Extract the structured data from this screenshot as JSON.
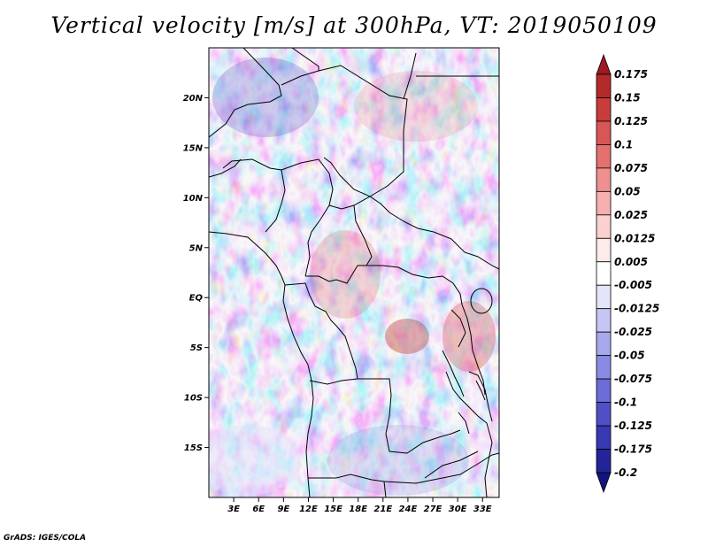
{
  "title": "Vertical velocity [m/s] at 300hPa, VT: 2019050109",
  "credit": "GrADS: IGES/COLA",
  "map": {
    "lon_range": [
      0,
      35
    ],
    "lat_range": [
      -20,
      25
    ],
    "lon_ticks": [
      "3E",
      "6E",
      "9E",
      "12E",
      "15E",
      "18E",
      "21E",
      "24E",
      "27E",
      "30E",
      "33E"
    ],
    "lat_ticks": [
      "20N",
      "15N",
      "10N",
      "5N",
      "EQ",
      "5S",
      "10S",
      "15S"
    ]
  },
  "colorbar": {
    "labels": [
      "0.175",
      "0.15",
      "0.125",
      "0.1",
      "0.075",
      "0.05",
      "0.025",
      "0.0125",
      "0.005",
      "-0.005",
      "-0.0125",
      "-0.025",
      "-0.05",
      "-0.075",
      "-0.1",
      "-0.125",
      "-0.175",
      "-0.2"
    ],
    "colors": [
      "#a01820",
      "#b42a2a",
      "#c83c3c",
      "#d85656",
      "#e47070",
      "#ee9090",
      "#f6b0b0",
      "#fbd0d0",
      "#fdeaea",
      "#ffffff",
      "#e4e4fb",
      "#c6c6f4",
      "#a8a8ec",
      "#8a8ae2",
      "#6c6cd6",
      "#5050c6",
      "#3838b2",
      "#24249a",
      "#14147e"
    ]
  }
}
